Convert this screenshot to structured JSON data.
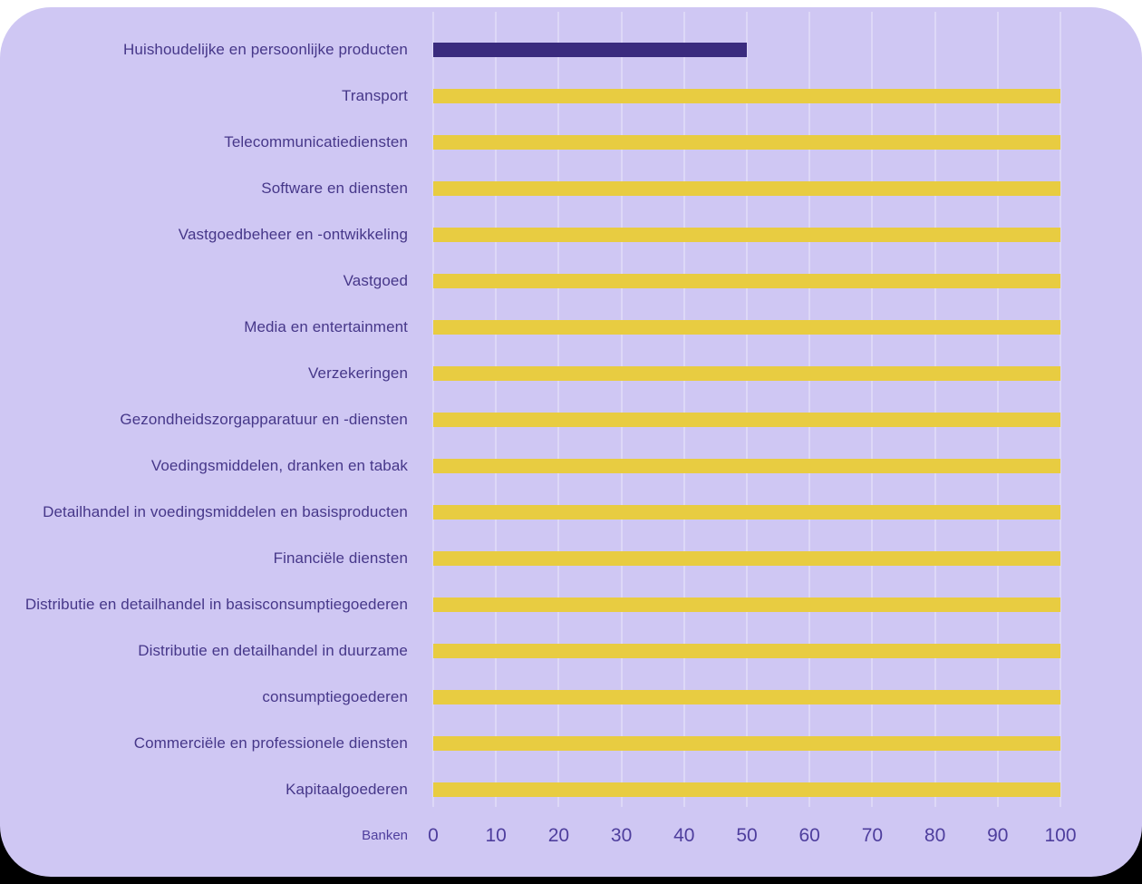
{
  "page": {
    "background_top": "#ffffff",
    "background_bottom": "#000000",
    "card_background": "#cfc7f3"
  },
  "chart_data": {
    "type": "bar",
    "orientation": "horizontal",
    "title": "",
    "xlabel": "Banken",
    "ylabel": "",
    "xlim": [
      0,
      100
    ],
    "grid": true,
    "x_ticks": [
      "0",
      "10",
      "20",
      "30",
      "40",
      "50",
      "60",
      "70",
      "80",
      "90",
      "100"
    ],
    "categories": [
      "Huishoudelijke en persoonlijke producten",
      "Transport",
      "Telecommunicatiediensten",
      "Software en diensten",
      "Vastgoedbeheer en -ontwikkeling",
      "Vastgoed",
      "Media en entertainment",
      "Verzekeringen",
      "Gezondheidszorgapparatuur en -diensten",
      "Voedingsmiddelen, dranken en tabak",
      "Detailhandel in voedingsmiddelen en basisproducten",
      "Financiële diensten",
      "Distributie en detailhandel in basisconsumptiegoederen",
      "Distributie en detailhandel in duurzame",
      "consumptiegoederen",
      "Commerciële en professionele diensten",
      "Kapitaalgoederen"
    ],
    "values": [
      50,
      100,
      100,
      100,
      100,
      100,
      100,
      100,
      100,
      100,
      100,
      100,
      100,
      100,
      100,
      100,
      100
    ],
    "colors": {
      "default_bar": "#e8cc41",
      "highlight_bar": "#3a2b7e",
      "highlight_index": 0,
      "gridline": "#ddd8f7",
      "category_text": "#463789",
      "tick_text": "#4e3e9d",
      "background": "#cfc7f3"
    }
  }
}
